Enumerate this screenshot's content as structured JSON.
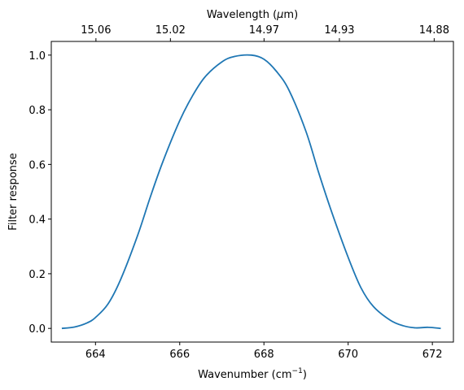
{
  "chart_data": {
    "type": "line",
    "xlabel": "Wavenumber (cm",
    "xlabel_sup": "−1",
    "xlabel_end": ")",
    "ylabel": "Filter response",
    "top_xlabel_prefix": "Wavelength (",
    "top_xlabel_symbol": "μ",
    "top_xlabel_suffix": "m)",
    "xlim": [
      662.95,
      672.5
    ],
    "ylim": [
      -0.05,
      1.05
    ],
    "grid": false,
    "x_ticks": [
      664,
      666,
      668,
      670,
      672
    ],
    "x_tick_labels": [
      "664",
      "666",
      "668",
      "670",
      "672"
    ],
    "y_ticks": [
      0.0,
      0.2,
      0.4,
      0.6,
      0.8,
      1.0
    ],
    "y_tick_labels": [
      "0.0",
      "0.2",
      "0.4",
      "0.6",
      "0.8",
      "1.0"
    ],
    "top_ticks": [
      15.06,
      15.02,
      14.97,
      14.93,
      14.88
    ],
    "top_tick_labels": [
      "15.06",
      "15.02",
      "14.97",
      "14.93",
      "14.88"
    ],
    "line_color": "#1f77b4",
    "series": [
      {
        "x": [
          663.2,
          663.5,
          663.8,
          664.0,
          664.3,
          664.6,
          665.0,
          665.3,
          665.6,
          666.0,
          666.3,
          666.6,
          667.0,
          667.3,
          667.7,
          668.0,
          668.3,
          668.6,
          669.0,
          669.3,
          669.6,
          670.0,
          670.3,
          670.6,
          671.0,
          671.3,
          671.6,
          671.9,
          672.2
        ],
        "y": [
          0.0,
          0.005,
          0.02,
          0.04,
          0.09,
          0.18,
          0.34,
          0.48,
          0.61,
          0.76,
          0.85,
          0.92,
          0.975,
          0.995,
          1.0,
          0.985,
          0.94,
          0.87,
          0.72,
          0.57,
          0.43,
          0.26,
          0.15,
          0.08,
          0.03,
          0.01,
          0.002,
          0.004,
          0.0
        ]
      }
    ]
  }
}
